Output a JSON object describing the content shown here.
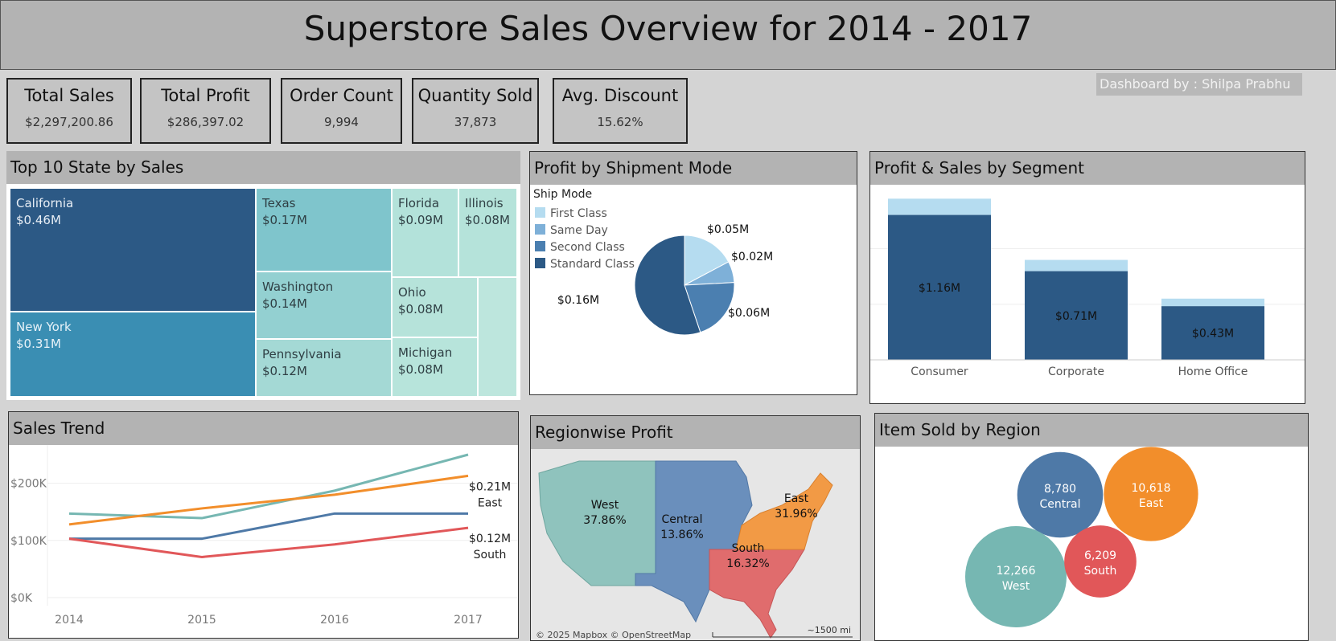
{
  "title": "Superstore Sales Overview for 2014 - 2017",
  "credit": "Dashboard by : Shilpa Prabhu",
  "kpis": [
    {
      "label": "Total Sales",
      "value": "$2,297,200.86"
    },
    {
      "label": "Total Profit",
      "value": "$286,397.02"
    },
    {
      "label": "Order Count",
      "value": "9,994"
    },
    {
      "label": "Quantity Sold",
      "value": "37,873"
    },
    {
      "label": "Avg. Discount",
      "value": "15.62%"
    }
  ],
  "chart_data": [
    {
      "type": "treemap",
      "title": "Top  10 State by Sales",
      "items": [
        {
          "label": "California",
          "value": 0.46,
          "value_label": "$0.46M",
          "color": "#2c5985"
        },
        {
          "label": "New York",
          "value": 0.31,
          "value_label": "$0.31M",
          "color": "#3a8eb3"
        },
        {
          "label": "Texas",
          "value": 0.17,
          "value_label": "$0.17M",
          "color": "#7fc5cc"
        },
        {
          "label": "Washington",
          "value": 0.14,
          "value_label": "$0.14M",
          "color": "#93d0d1"
        },
        {
          "label": "Pennsylvania",
          "value": 0.12,
          "value_label": "$0.12M",
          "color": "#a4d9d5"
        },
        {
          "label": "Florida",
          "value": 0.09,
          "value_label": "$0.09M",
          "color": "#b3e2da"
        },
        {
          "label": "Illinois",
          "value": 0.08,
          "value_label": "$0.08M",
          "color": "#b5e3da"
        },
        {
          "label": "Ohio",
          "value": 0.08,
          "value_label": "$0.08M",
          "color": "#b6e3da"
        },
        {
          "label": "Michigan",
          "value": 0.08,
          "value_label": "$0.08M",
          "color": "#b7e4db"
        },
        {
          "label": "",
          "value": 0.07,
          "value_label": "",
          "color": "#bde6dd"
        }
      ]
    },
    {
      "type": "pie",
      "title": "Profit by Shipment Mode",
      "legend_title": "Ship Mode",
      "legend_position": "top-left",
      "slices": [
        {
          "name": "First Class",
          "value": 0.05,
          "label": "$0.05M",
          "color": "#b5dcf0"
        },
        {
          "name": "Same Day",
          "value": 0.02,
          "label": "$0.02M",
          "color": "#7eb0d8"
        },
        {
          "name": "Second Class",
          "value": 0.06,
          "label": "$0.06M",
          "color": "#4b7fb0"
        },
        {
          "name": "Standard Class",
          "value": 0.16,
          "label": "$0.16M",
          "color": "#2c5985"
        }
      ]
    },
    {
      "type": "bar",
      "stacked": true,
      "title": "Profit & Sales by Segment",
      "categories": [
        "Consumer",
        "Corporate",
        "Home Office"
      ],
      "series": [
        {
          "values": [
            1.16,
            0.71,
            0.43
          ],
          "labels": [
            "$1.16M",
            "$0.71M",
            "$0.43M"
          ],
          "color": "#2c5985"
        },
        {
          "values": [
            0.13,
            0.09,
            0.06
          ],
          "color": "#b5dcf0"
        }
      ],
      "ylim": [
        0,
        1.35
      ],
      "grid": true
    },
    {
      "type": "line",
      "title": "Sales Trend",
      "x": [
        "2014",
        "2015",
        "2016",
        "2017"
      ],
      "yticks": [
        "$0K",
        "$100K",
        "$200K"
      ],
      "ylim": [
        0,
        250000
      ],
      "series": [
        {
          "values": [
            147000,
            139000,
            187000,
            250000
          ],
          "color": "#76b7b2"
        },
        {
          "name": "East",
          "values": [
            128000,
            156000,
            180000,
            213000
          ],
          "end_label": "$0.21M",
          "color": "#f28e2b"
        },
        {
          "values": [
            103000,
            103000,
            147000,
            147000
          ],
          "color": "#4e79a7"
        },
        {
          "name": "South",
          "values": [
            103000,
            71000,
            93000,
            122000
          ],
          "end_label": "$0.12M",
          "color": "#e15759"
        }
      ]
    },
    {
      "type": "map",
      "title": "Regionwise Profit",
      "regions": [
        {
          "name": "West",
          "value": "37.86%",
          "color": "#8fc3bd"
        },
        {
          "name": "Central",
          "value": "13.86%",
          "color": "#6a8fbc"
        },
        {
          "name": "South",
          "value": "16.32%",
          "color": "#e06c6d"
        },
        {
          "name": "East",
          "value": "31.96%",
          "color": "#f29a45"
        }
      ],
      "attribution": "© 2025 Mapbox © OpenStreetMap",
      "scale": "~1500 mi"
    },
    {
      "type": "bubble",
      "title": "Item Sold by Region",
      "items": [
        {
          "name": "Central",
          "value": 8780,
          "label": "8,780",
          "color": "#4e79a7"
        },
        {
          "name": "East",
          "value": 10618,
          "label": "10,618",
          "color": "#f28e2b"
        },
        {
          "name": "West",
          "value": 12266,
          "label": "12,266",
          "color": "#76b7b2"
        },
        {
          "name": "South",
          "value": 6209,
          "label": "6,209",
          "color": "#e15759"
        }
      ]
    }
  ]
}
